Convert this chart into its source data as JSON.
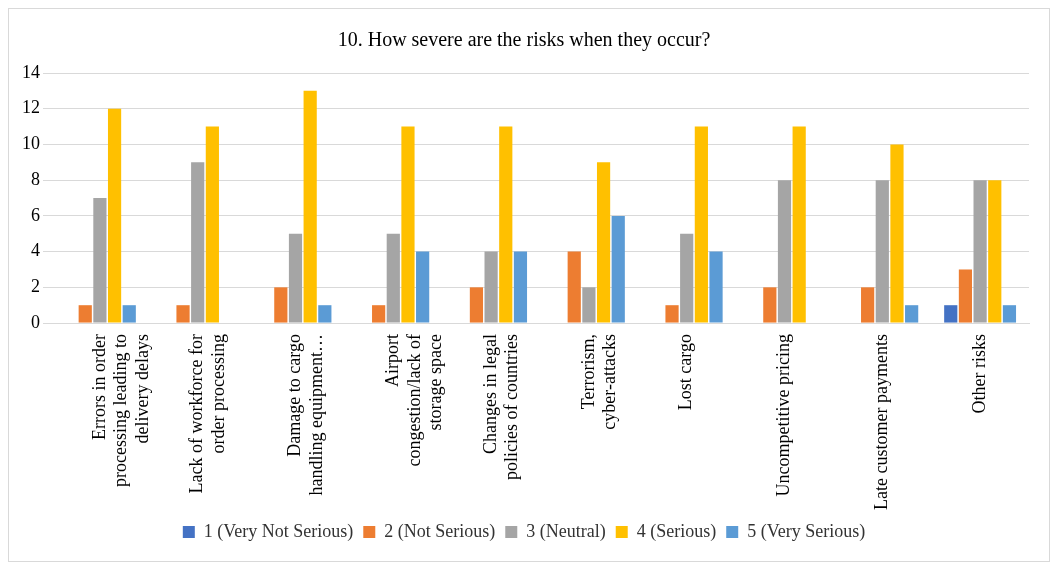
{
  "chart_data": {
    "type": "bar",
    "title": "10. How severe are the risks when they occur?",
    "categories": [
      "Errors in order processing leading to delivery delays",
      "Lack of workforce for order processing",
      "Damage to cargo handling equipment…",
      "Airport congestion/lack of storage space",
      "Changes in legal policies of countries",
      "Terrorism, cyber-attacks",
      "Lost cargo",
      "Uncompetitive pricing",
      "Late customer payments",
      "Other risks"
    ],
    "series": [
      {
        "name": "1 (Very Not Serious)",
        "color": "#4472c4",
        "values": [
          0,
          0,
          0,
          0,
          0,
          0,
          0,
          0,
          0,
          1
        ]
      },
      {
        "name": "2 (Not Serious)",
        "color": "#ed7d31",
        "values": [
          1,
          1,
          2,
          1,
          2,
          4,
          1,
          2,
          2,
          3
        ]
      },
      {
        "name": "3 (Neutral)",
        "color": "#a5a5a5",
        "values": [
          7,
          9,
          5,
          5,
          4,
          2,
          5,
          8,
          8,
          8
        ]
      },
      {
        "name": "4 (Serious)",
        "color": "#ffc000",
        "values": [
          12,
          11,
          13,
          11,
          11,
          9,
          11,
          11,
          10,
          8
        ]
      },
      {
        "name": "5 (Very Serious)",
        "color": "#5b9bd5",
        "values": [
          1,
          0,
          1,
          4,
          4,
          6,
          4,
          0,
          1,
          1
        ]
      }
    ],
    "ylim": [
      0,
      14
    ],
    "yticks": [
      0,
      2,
      4,
      6,
      8,
      10,
      12,
      14
    ],
    "grid": "y",
    "legend": "bottom"
  }
}
